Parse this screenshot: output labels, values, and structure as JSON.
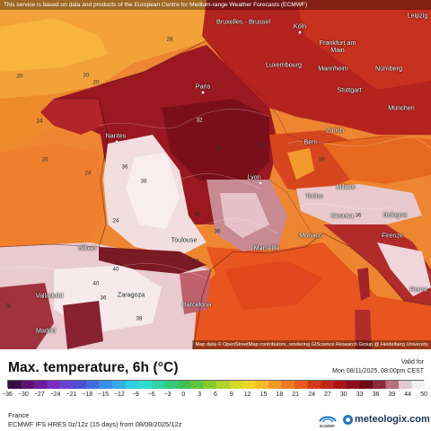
{
  "disclaimer": "This service is based on data and products of the European Centre for Medium-range Weather Forecasts (ECMWF)",
  "attribution": "Map data © OpenStreetMap contributors, rendering GIScience Research Group @ Heidelberg University",
  "cities": [
    {
      "id": "leipzig",
      "name": "Leipzig"
    },
    {
      "id": "bruxelles",
      "name": "Bruxelles - Brussel"
    },
    {
      "id": "koln",
      "name": "Köln"
    },
    {
      "id": "frankfurt",
      "name": "Frankfurt am Main"
    },
    {
      "id": "luxembourg",
      "name": "Luxembourg"
    },
    {
      "id": "mannheim",
      "name": "Mannheim"
    },
    {
      "id": "nurnberg",
      "name": "Nürnberg"
    },
    {
      "id": "paris",
      "name": "Paris"
    },
    {
      "id": "stuttgart",
      "name": "Stuttgart"
    },
    {
      "id": "munchen",
      "name": "München"
    },
    {
      "id": "nantes",
      "name": "Nantes"
    },
    {
      "id": "bern",
      "name": "Bern"
    },
    {
      "id": "zurich",
      "name": "Zürich"
    },
    {
      "id": "lyon",
      "name": "Lyon"
    },
    {
      "id": "milano",
      "name": "Milano"
    },
    {
      "id": "torino",
      "name": "Torino"
    },
    {
      "id": "genova",
      "name": "Genova"
    },
    {
      "id": "bologna",
      "name": "Bologna"
    },
    {
      "id": "toulouse",
      "name": "Toulouse"
    },
    {
      "id": "marseille",
      "name": "Marseille"
    },
    {
      "id": "monaco",
      "name": "Monaco"
    },
    {
      "id": "firenze",
      "name": "Firenze"
    },
    {
      "id": "bilbao",
      "name": "Bilbao"
    },
    {
      "id": "zaragoza",
      "name": "Zaragoza"
    },
    {
      "id": "barcelona",
      "name": "Barcelona"
    },
    {
      "id": "valladolid",
      "name": "Valladolid"
    },
    {
      "id": "madrid",
      "name": "Madrid"
    },
    {
      "id": "roma",
      "name": "Roma"
    }
  ],
  "isotherm_labels": [
    "20",
    "20",
    "24",
    "20",
    "24",
    "24",
    "28",
    "32",
    "36",
    "38",
    "38",
    "36",
    "10",
    "40",
    "40",
    "36",
    "28",
    "38",
    "40",
    "20",
    "26",
    "32",
    "36"
  ],
  "footer": {
    "title": "Max. temperature, 6h (°C)",
    "valid_label": "Valid for",
    "valid_date": "Mon 08/11/2025, 08:00pm CEST",
    "region": "France",
    "model": "ECMWF IFS HRES 0z/12z (15 days) from 08/08/2025/12z",
    "ecmwf_logo_text": "ECMWF",
    "brand": "meteologix.com"
  },
  "legend": {
    "ticks": [
      "−36",
      "−30",
      "−27",
      "−24",
      "−21",
      "−18",
      "−15",
      "−12",
      "−9",
      "−6",
      "−3",
      "0",
      "3",
      "6",
      "9",
      "12",
      "15",
      "18",
      "21",
      "24",
      "27",
      "30",
      "33",
      "36",
      "39",
      "44",
      "50"
    ],
    "colors": [
      "#3b0a45",
      "#5a1470",
      "#6d1b9c",
      "#7b2fbe",
      "#6b3fd1",
      "#4a4fd8",
      "#3e6fe0",
      "#3b8fe6",
      "#35aee8",
      "#2fcfe6",
      "#31dcd0",
      "#2fd4a8",
      "#35c97f",
      "#3fbf55",
      "#5fc43a",
      "#86cc2f",
      "#b0d42a",
      "#d4d92a",
      "#f0d42b",
      "#f6b92a",
      "#f59a27",
      "#ef7a24",
      "#e55a20",
      "#d43a1c",
      "#c2261a",
      "#a8141a",
      "#8a0b1c",
      "#6f0618",
      "#8c2a3a",
      "#b7707c",
      "#e0c8cc",
      "#f4eef0"
    ]
  },
  "colors": {
    "sea_west": "#ef8a2b",
    "sea_north": "#f0a03a",
    "med_sea": "#e8531f",
    "france_north": "#a11d1e",
    "hot_core": "#7a0f1a",
    "very_hot": "#f2dde0",
    "alps_cool": "#f08a2a",
    "brand": "#1d3557"
  }
}
